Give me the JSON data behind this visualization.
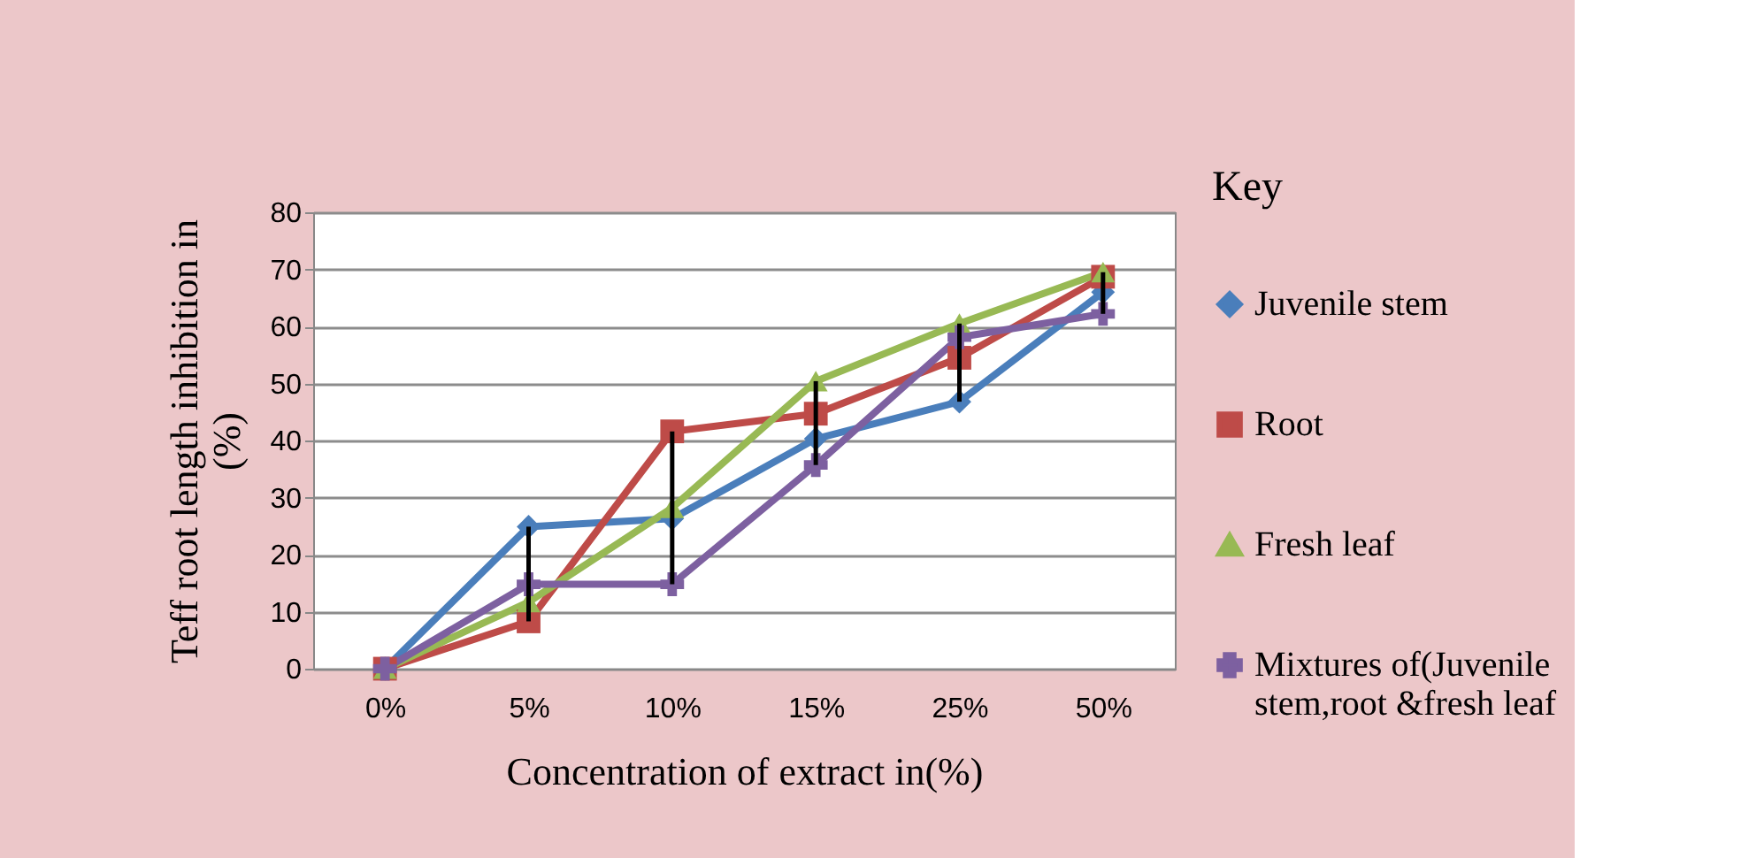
{
  "chart_data": {
    "type": "line",
    "xlabel": "Concentration of extract in(%)",
    "ylabel": "Teff root length inhibition in (%)",
    "legend_title": "Key",
    "categories": [
      "0%",
      "5%",
      "10%",
      "15%",
      "25%",
      "50%"
    ],
    "series": [
      {
        "name": "Juvenile stem",
        "color": "#4a7ebb",
        "marker": "diamond",
        "values": [
          0,
          24.9,
          26.3,
          40.3,
          46.8,
          66.0
        ]
      },
      {
        "name": "Root",
        "color": "#be4b48",
        "marker": "square",
        "values": [
          0,
          8.3,
          41.6,
          44.7,
          54.5,
          68.7
        ]
      },
      {
        "name": "Fresh leaf",
        "color": "#98b954",
        "marker": "triangle",
        "values": [
          0,
          11.7,
          28.2,
          50.4,
          60.5,
          69.5
        ]
      },
      {
        "name": "Mixtures of(Juvenile stem,root &fresh leaf",
        "color": "#7d60a0",
        "marker": "cross",
        "values": [
          0,
          14.8,
          14.8,
          35.7,
          58.1,
          62.2
        ]
      },
      {
        "type": "bar",
        "color": "#000000",
        "base": [
          null,
          8.3,
          14.8,
          35.7,
          46.8,
          62.2
        ],
        "values": [
          null,
          16.6,
          26.8,
          14.7,
          13.7,
          7.3
        ]
      }
    ],
    "ylim": [
      0,
      80
    ],
    "yticks": [
      0,
      10,
      20,
      30,
      40,
      50,
      60,
      70,
      80
    ],
    "grid": "y",
    "legend": "right"
  }
}
